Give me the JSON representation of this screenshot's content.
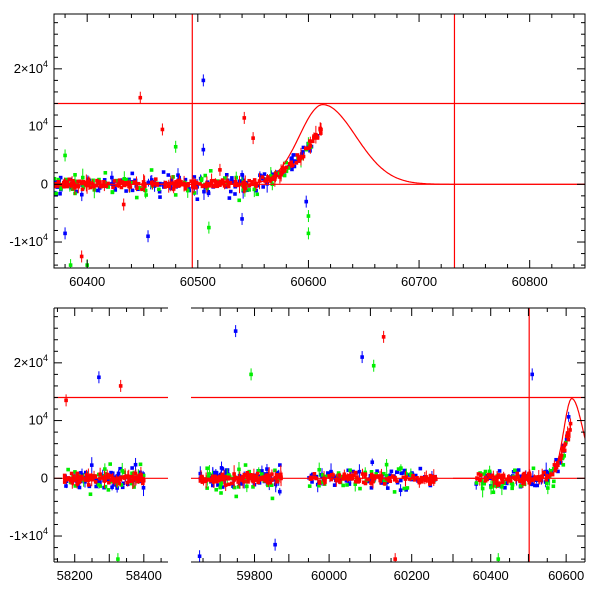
{
  "chart_data": [
    {
      "type": "scatter",
      "panel": "top",
      "title": "",
      "xlabel": "",
      "ylabel": "",
      "xlim": [
        60370,
        60850
      ],
      "ylim": [
        -14500,
        29500
      ],
      "x_ticks": [
        "60400",
        "60500",
        "60600",
        "60700",
        "60800"
      ],
      "x_tick_values": [
        60400,
        60500,
        60600,
        60700,
        60800
      ],
      "y_ticks": [
        {
          "value": 20000,
          "base": "2×10",
          "exp": "4"
        },
        {
          "value": 10000,
          "base": "10",
          "exp": "4"
        },
        {
          "value": 0,
          "base": "0",
          "exp": ""
        },
        {
          "value": -10000,
          "base": "-1×10",
          "exp": "4"
        }
      ],
      "hlines": [
        0,
        14000
      ],
      "vlines": [
        60495,
        60732
      ],
      "model_curve": {
        "color": "#ff0000",
        "baseline": 0,
        "peak_x": 60613,
        "peak_y": 13800
      },
      "series": [
        {
          "color": "#0000ff",
          "x_range": [
            60370,
            60610
          ],
          "scatter": 2600,
          "count": 150,
          "extra_points": [
            [
              60505,
              18000
            ],
            [
              60505,
              6000
            ],
            [
              60455,
              -9000
            ],
            [
              60380,
              -8500
            ],
            [
              60540,
              -6000
            ],
            [
              60598,
              -3000
            ]
          ]
        },
        {
          "color": "#00ee00",
          "x_range": [
            60370,
            60605
          ],
          "scatter": 3200,
          "count": 90,
          "extra_points": [
            [
              60400,
              -14000
            ],
            [
              60385,
              -14000
            ],
            [
              60600,
              -8500
            ],
            [
              60600,
              -5500
            ],
            [
              60480,
              6500
            ],
            [
              60380,
              5000
            ],
            [
              60510,
              -7500
            ]
          ]
        },
        {
          "color": "#ff0000",
          "x_range": [
            60370,
            60612
          ],
          "scatter": 1100,
          "count": 230,
          "extra_points": [
            [
              60448,
              15000
            ],
            [
              60542,
              11500
            ],
            [
              60520,
              2500
            ],
            [
              60433,
              -3500
            ],
            [
              60468,
              9500
            ],
            [
              60395,
              -12500
            ],
            [
              60550,
              8000
            ]
          ]
        }
      ]
    },
    {
      "type": "scatter",
      "panel": "bottom",
      "title": "",
      "xlabel": "",
      "ylabel": "",
      "ylim": [
        -14500,
        29500
      ],
      "y_ticks": [
        {
          "value": 20000,
          "base": "2×10",
          "exp": "4"
        },
        {
          "value": 10000,
          "base": "10",
          "exp": "4"
        },
        {
          "value": 0,
          "base": "0",
          "exp": ""
        },
        {
          "value": -10000,
          "base": "-1×10",
          "exp": "4"
        }
      ],
      "hlines": [
        0,
        14000
      ],
      "segments": [
        {
          "xlim": [
            58140,
            58470
          ],
          "x_ticks": [
            "58200",
            "58400"
          ],
          "x_tick_values": [
            58200,
            58400
          ],
          "data_range": [
            58170,
            58400
          ]
        },
        {
          "xlim": [
            59615,
            59915
          ],
          "x_ticks": [
            "59800"
          ],
          "x_tick_values": [
            59800
          ],
          "data_range": [
            59640,
            59880
          ]
        },
        {
          "xlim": [
            59915,
            60300
          ],
          "x_ticks": [
            "60000",
            "60200"
          ],
          "x_tick_values": [
            60000,
            60200
          ],
          "data_range": [
            59950,
            60260
          ]
        },
        {
          "xlim": [
            60300,
            60650
          ],
          "x_ticks": [
            "60400",
            "60600"
          ],
          "x_tick_values": [
            60400,
            60600
          ],
          "data_range": [
            60360,
            60612
          ],
          "vline": 60502,
          "model_peak_x": 60615
        }
      ],
      "series": [
        {
          "color": "#0000ff",
          "count_per_segment": 70,
          "scatter": 3000
        },
        {
          "color": "#00ee00",
          "count_per_segment": 40,
          "scatter": 4000
        },
        {
          "color": "#ff0000",
          "count_per_segment": 110,
          "scatter": 1500
        }
      ],
      "extra_points": [
        {
          "color": "#0000ff",
          "x": 59745,
          "y": 25500
        },
        {
          "color": "#0000ff",
          "x": 58270,
          "y": 17500
        },
        {
          "color": "#ff0000",
          "x": 58333,
          "y": 16000
        },
        {
          "color": "#ff0000",
          "x": 58175,
          "y": 13500
        },
        {
          "color": "#ff0000",
          "x": 60132,
          "y": 24500
        },
        {
          "color": "#0000ff",
          "x": 60080,
          "y": 21000
        },
        {
          "color": "#00ee00",
          "x": 60108,
          "y": 19500
        },
        {
          "color": "#0000ff",
          "x": 60510,
          "y": 18000
        },
        {
          "color": "#00ee00",
          "x": 59790,
          "y": 18000
        },
        {
          "color": "#0000ff",
          "x": 59860,
          "y": -11500
        },
        {
          "color": "#00ee00",
          "x": 58325,
          "y": -14000
        },
        {
          "color": "#0000ff",
          "x": 59640,
          "y": -13500
        },
        {
          "color": "#ff0000",
          "x": 60160,
          "y": -14000
        },
        {
          "color": "#00ee00",
          "x": 60420,
          "y": -14000
        }
      ]
    }
  ]
}
